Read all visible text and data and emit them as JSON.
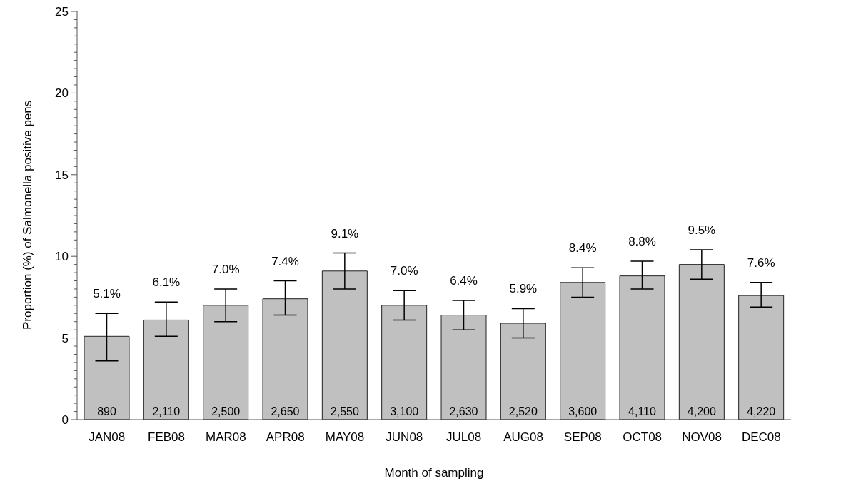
{
  "chart_data": {
    "type": "bar",
    "xlabel": "Month of sampling",
    "ylabel": "Proportion (%) of Salmonella positive pens",
    "categories": [
      "JAN08",
      "FEB08",
      "MAR08",
      "APR08",
      "MAY08",
      "JUN08",
      "JUL08",
      "AUG08",
      "SEP08",
      "OCT08",
      "NOV08",
      "DEC08"
    ],
    "values": [
      5.1,
      6.1,
      7.0,
      7.4,
      9.1,
      7.0,
      6.4,
      5.9,
      8.4,
      8.8,
      9.5,
      7.6
    ],
    "value_labels": [
      "5.1%",
      "6.1%",
      "7.0%",
      "7.4%",
      "9.1%",
      "7.0%",
      "6.4%",
      "5.9%",
      "8.4%",
      "8.8%",
      "9.5%",
      "7.6%"
    ],
    "errors": [
      [
        3.6,
        6.5
      ],
      [
        5.1,
        7.2
      ],
      [
        6.0,
        8.0
      ],
      [
        6.4,
        8.5
      ],
      [
        8.0,
        10.2
      ],
      [
        6.1,
        7.9
      ],
      [
        5.5,
        7.3
      ],
      [
        5.0,
        6.8
      ],
      [
        7.5,
        9.3
      ],
      [
        8.0,
        9.7
      ],
      [
        8.6,
        10.4
      ],
      [
        6.9,
        8.4
      ]
    ],
    "color": "#c0c0c0",
    "ylim": [
      0,
      25
    ],
    "yticks": [
      0,
      {
        "value": 0.5,
        "label": null
      },
      {
        "value": 1,
        "label": null
      },
      {
        "value": 1.5,
        "label": null
      },
      {
        "value": 2,
        "label": null
      },
      {
        "value": 2.5,
        "label": null
      },
      {
        "value": 3,
        "label": null
      },
      {
        "value": 3.5,
        "label": null
      },
      {
        "value": 4,
        "label": null
      },
      {
        "value": 4.5,
        "label": null
      },
      5,
      {
        "value": 5.5,
        "label": null
      },
      {
        "value": 6,
        "label": null
      },
      {
        "value": 6.5,
        "label": null
      },
      {
        "value": 7,
        "label": null
      },
      {
        "value": 7.5,
        "label": null
      },
      {
        "value": 8,
        "label": null
      },
      {
        "value": 8.5,
        "label": null
      },
      {
        "value": 9,
        "label": null
      },
      {
        "value": 9.5,
        "label": null
      },
      10,
      {
        "value": 10.5,
        "label": null
      },
      {
        "value": 11,
        "label": null
      },
      {
        "value": 11.5,
        "label": null
      },
      {
        "value": 12,
        "label": null
      },
      {
        "value": 12.5,
        "label": null
      },
      {
        "value": 13,
        "label": null
      },
      {
        "value": 13.5,
        "label": null
      },
      {
        "value": 14,
        "label": null
      },
      {
        "value": 14.5,
        "label": null
      },
      15,
      {
        "value": 15.5,
        "label": null
      },
      {
        "value": 16,
        "label": null
      },
      {
        "value": 16.5,
        "label": null
      },
      {
        "value": 17,
        "label": null
      },
      {
        "value": 17.5,
        "label": null
      },
      {
        "value": 18,
        "label": null
      },
      {
        "value": 18.5,
        "label": null
      },
      {
        "value": 19,
        "label": null
      },
      {
        "value": 19.5,
        "label": null
      },
      20,
      {
        "value": 20.5,
        "label": null
      },
      {
        "value": 21,
        "label": null
      },
      {
        "value": 21.5,
        "label": null
      },
      {
        "value": 22,
        "label": null
      },
      {
        "value": 22.5,
        "label": null
      },
      {
        "value": 23,
        "label": null
      },
      {
        "value": 23.5,
        "label": null
      },
      {
        "value": 24,
        "label": null
      },
      {
        "value": 24.5,
        "label": null
      },
      25
    ],
    "grid": false,
    "legend": false,
    "annotations": [
      {
        "text": "890",
        "x": "JAN08",
        "y": 0
      },
      {
        "text": "2,110",
        "x": "FEB08",
        "y": 0
      },
      {
        "text": "2,500",
        "x": "MAR08",
        "y": 0
      },
      {
        "text": "2,650",
        "x": "APR08",
        "y": 0
      },
      {
        "text": "2,550",
        "x": "MAY08",
        "y": 0
      },
      {
        "text": "3,100",
        "x": "JUN08",
        "y": 0
      },
      {
        "text": "2,630",
        "x": "JUL08",
        "y": 0
      },
      {
        "text": "2,520",
        "x": "AUG08",
        "y": 0
      },
      {
        "text": "3,600",
        "x": "SEP08",
        "y": 0
      },
      {
        "text": "4,110",
        "x": "OCT08",
        "y": 0
      },
      {
        "text": "4,200",
        "x": "NOV08",
        "y": 0
      },
      {
        "text": "4,220",
        "x": "DEC08",
        "y": 0
      }
    ]
  }
}
